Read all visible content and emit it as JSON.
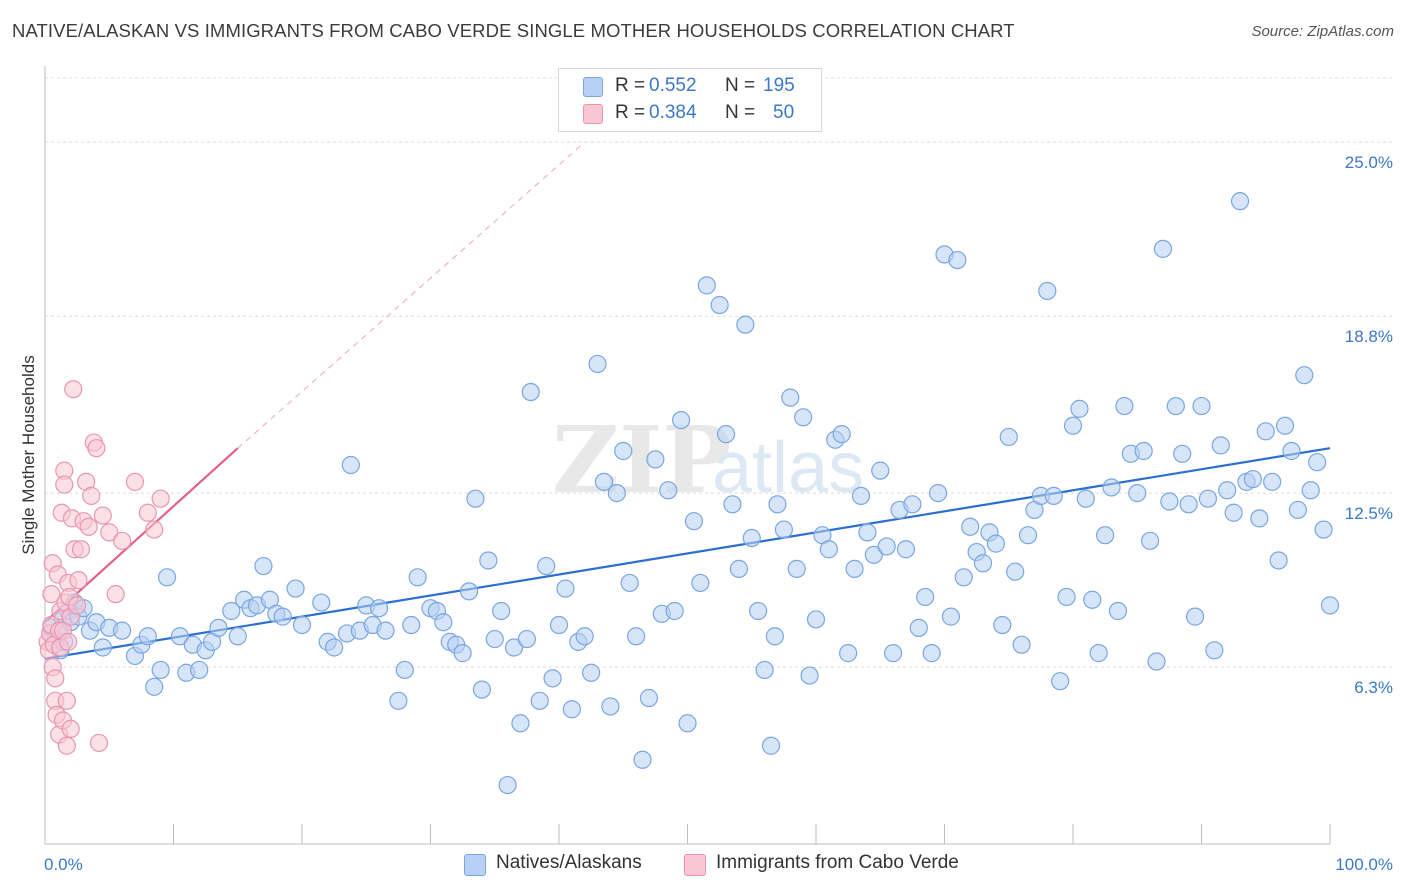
{
  "title": "NATIVE/ALASKAN VS IMMIGRANTS FROM CABO VERDE SINGLE MOTHER HOUSEHOLDS CORRELATION CHART",
  "source": "Source: ZipAtlas.com",
  "watermark": {
    "zip": "ZIP",
    "atlas": "atlas"
  },
  "legend": {
    "r_label": "R =",
    "n_label": "N =",
    "items": [
      {
        "r": "0.552",
        "n": "195",
        "fill": "#b7d0f4",
        "stroke": "#7aa6e0"
      },
      {
        "r": "0.384",
        "n": "50",
        "fill": "#f9c6d6",
        "stroke": "#e896b0"
      }
    ]
  },
  "chart_data": {
    "type": "scatter",
    "title": "NATIVE/ALASKAN VS IMMIGRANTS FROM CABO VERDE SINGLE MOTHER HOUSEHOLDS CORRELATION CHART",
    "xlabel": "",
    "ylabel": "Single Mother Households",
    "xlim": [
      0,
      100
    ],
    "ylim": [
      0,
      27.5
    ],
    "x_tick_labels": [
      "0.0%",
      "100.0%"
    ],
    "y_ticks": [
      6.3,
      12.5,
      18.8,
      25.0
    ],
    "y_tick_labels": [
      "6.3%",
      "12.5%",
      "18.8%",
      "25.0%"
    ],
    "grid": true,
    "legend_position": "top-center",
    "series": [
      {
        "name": "Natives/Alaskans",
        "color": "#7aa6e0",
        "fill": "#b7d0f4",
        "trend": {
          "x": [
            0,
            100
          ],
          "y": [
            6.6,
            14.1
          ],
          "color": "#2a6fd0"
        },
        "points": [
          [
            0.5,
            7.7
          ],
          [
            0.8,
            7.3
          ],
          [
            1.0,
            7.5
          ],
          [
            1.2,
            6.9
          ],
          [
            1.4,
            8.0
          ],
          [
            1.5,
            7.2
          ],
          [
            1.8,
            8.3
          ],
          [
            2.0,
            7.9
          ],
          [
            2.3,
            8.6
          ],
          [
            2.6,
            8.1
          ],
          [
            3.0,
            8.4
          ],
          [
            3.5,
            7.6
          ],
          [
            4.0,
            7.9
          ],
          [
            4.5,
            7.0
          ],
          [
            5.0,
            7.7
          ],
          [
            6.0,
            7.6
          ],
          [
            7.0,
            6.7
          ],
          [
            7.5,
            7.1
          ],
          [
            8.0,
            7.4
          ],
          [
            8.5,
            5.6
          ],
          [
            9.0,
            6.2
          ],
          [
            9.5,
            9.5
          ],
          [
            10.5,
            7.4
          ],
          [
            11.0,
            6.1
          ],
          [
            11.5,
            7.1
          ],
          [
            12.0,
            6.2
          ],
          [
            12.5,
            6.9
          ],
          [
            13.0,
            7.2
          ],
          [
            13.5,
            7.7
          ],
          [
            14.5,
            8.3
          ],
          [
            15.0,
            7.4
          ],
          [
            15.5,
            8.7
          ],
          [
            16.0,
            8.4
          ],
          [
            16.5,
            8.5
          ],
          [
            17.0,
            9.9
          ],
          [
            17.5,
            8.7
          ],
          [
            18.0,
            8.2
          ],
          [
            18.5,
            8.1
          ],
          [
            19.5,
            9.1
          ],
          [
            20.0,
            7.8
          ],
          [
            21.5,
            8.6
          ],
          [
            22.0,
            7.2
          ],
          [
            22.5,
            7.0
          ],
          [
            23.5,
            7.5
          ],
          [
            23.8,
            13.5
          ],
          [
            24.5,
            7.6
          ],
          [
            25.0,
            8.5
          ],
          [
            25.5,
            7.8
          ],
          [
            26.0,
            8.4
          ],
          [
            26.5,
            7.6
          ],
          [
            27.5,
            5.1
          ],
          [
            28.0,
            6.2
          ],
          [
            28.5,
            7.8
          ],
          [
            29.0,
            9.5
          ],
          [
            30.0,
            8.4
          ],
          [
            30.5,
            8.3
          ],
          [
            31.0,
            7.9
          ],
          [
            31.5,
            7.2
          ],
          [
            32.0,
            7.1
          ],
          [
            32.5,
            6.8
          ],
          [
            33.0,
            9.0
          ],
          [
            33.5,
            12.3
          ],
          [
            34.0,
            5.5
          ],
          [
            34.5,
            10.1
          ],
          [
            35.0,
            7.3
          ],
          [
            35.5,
            8.3
          ],
          [
            36.0,
            2.1
          ],
          [
            36.5,
            7.0
          ],
          [
            37.0,
            4.3
          ],
          [
            37.5,
            7.3
          ],
          [
            37.8,
            16.1
          ],
          [
            38.5,
            5.1
          ],
          [
            39.0,
            9.9
          ],
          [
            39.5,
            5.9
          ],
          [
            40.0,
            7.8
          ],
          [
            40.5,
            9.1
          ],
          [
            41.0,
            4.8
          ],
          [
            41.5,
            7.2
          ],
          [
            42.0,
            7.4
          ],
          [
            42.5,
            6.1
          ],
          [
            43.0,
            17.1
          ],
          [
            43.5,
            12.9
          ],
          [
            44.0,
            4.9
          ],
          [
            44.5,
            12.5
          ],
          [
            45.0,
            14.0
          ],
          [
            45.5,
            9.3
          ],
          [
            46.0,
            7.4
          ],
          [
            46.5,
            3.0
          ],
          [
            47.0,
            5.2
          ],
          [
            47.5,
            13.7
          ],
          [
            48.0,
            8.2
          ],
          [
            48.5,
            12.6
          ],
          [
            49.0,
            8.3
          ],
          [
            49.5,
            15.1
          ],
          [
            50.0,
            4.3
          ],
          [
            50.5,
            11.5
          ],
          [
            51.0,
            9.3
          ],
          [
            51.5,
            19.9
          ],
          [
            52.5,
            19.2
          ],
          [
            53.0,
            14.6
          ],
          [
            53.5,
            12.1
          ],
          [
            54.0,
            9.8
          ],
          [
            54.5,
            18.5
          ],
          [
            55.0,
            10.9
          ],
          [
            55.5,
            8.3
          ],
          [
            56.0,
            6.2
          ],
          [
            56.5,
            3.5
          ],
          [
            56.8,
            7.4
          ],
          [
            57.0,
            12.1
          ],
          [
            57.5,
            11.2
          ],
          [
            58.0,
            15.9
          ],
          [
            58.5,
            9.8
          ],
          [
            59.0,
            15.2
          ],
          [
            59.5,
            6.0
          ],
          [
            60.0,
            8.0
          ],
          [
            60.5,
            11.0
          ],
          [
            61.0,
            10.5
          ],
          [
            61.5,
            14.4
          ],
          [
            62.0,
            14.6
          ],
          [
            62.5,
            6.8
          ],
          [
            63.0,
            9.8
          ],
          [
            63.5,
            12.4
          ],
          [
            64.0,
            11.1
          ],
          [
            64.5,
            10.3
          ],
          [
            65.0,
            13.3
          ],
          [
            65.5,
            10.6
          ],
          [
            66.0,
            6.8
          ],
          [
            66.5,
            11.9
          ],
          [
            67.0,
            10.5
          ],
          [
            67.5,
            12.1
          ],
          [
            68.0,
            7.7
          ],
          [
            68.5,
            8.8
          ],
          [
            69.0,
            6.8
          ],
          [
            69.5,
            12.5
          ],
          [
            70.0,
            21.0
          ],
          [
            70.5,
            8.1
          ],
          [
            71.0,
            20.8
          ],
          [
            71.5,
            9.5
          ],
          [
            72.0,
            11.3
          ],
          [
            72.5,
            10.4
          ],
          [
            73.0,
            10.0
          ],
          [
            73.5,
            11.1
          ],
          [
            74.0,
            10.7
          ],
          [
            74.5,
            7.8
          ],
          [
            75.0,
            14.5
          ],
          [
            75.5,
            9.7
          ],
          [
            76.0,
            7.1
          ],
          [
            76.5,
            11.0
          ],
          [
            77.0,
            11.9
          ],
          [
            77.5,
            12.4
          ],
          [
            78.0,
            19.7
          ],
          [
            78.5,
            12.4
          ],
          [
            79.0,
            5.8
          ],
          [
            79.5,
            8.8
          ],
          [
            80.0,
            14.9
          ],
          [
            80.5,
            15.5
          ],
          [
            81.0,
            12.3
          ],
          [
            81.5,
            8.7
          ],
          [
            82.0,
            6.8
          ],
          [
            82.5,
            11.0
          ],
          [
            83.0,
            12.7
          ],
          [
            83.5,
            8.3
          ],
          [
            84.0,
            15.6
          ],
          [
            84.5,
            13.9
          ],
          [
            85.0,
            12.5
          ],
          [
            85.5,
            14.0
          ],
          [
            86.0,
            10.8
          ],
          [
            86.5,
            6.5
          ],
          [
            87.0,
            21.2
          ],
          [
            87.5,
            12.2
          ],
          [
            88.0,
            15.6
          ],
          [
            88.5,
            13.9
          ],
          [
            89.0,
            12.1
          ],
          [
            89.5,
            8.1
          ],
          [
            90.0,
            15.6
          ],
          [
            90.5,
            12.3
          ],
          [
            91.0,
            6.9
          ],
          [
            91.5,
            14.2
          ],
          [
            92.0,
            12.6
          ],
          [
            92.5,
            11.8
          ],
          [
            93.0,
            22.9
          ],
          [
            93.5,
            12.9
          ],
          [
            94.0,
            13.0
          ],
          [
            94.5,
            11.6
          ],
          [
            95.0,
            14.7
          ],
          [
            95.5,
            12.9
          ],
          [
            96.0,
            10.1
          ],
          [
            96.5,
            14.9
          ],
          [
            97.0,
            14.0
          ],
          [
            97.5,
            11.9
          ],
          [
            98.0,
            16.7
          ],
          [
            98.5,
            12.6
          ],
          [
            99.0,
            13.6
          ],
          [
            99.5,
            11.2
          ],
          [
            100.0,
            8.5
          ]
        ]
      },
      {
        "name": "Immigrants from Cabo Verde",
        "color": "#e896b0",
        "fill": "#f9c6d6",
        "trend": {
          "x": [
            0,
            15
          ],
          "y": [
            7.9,
            14.1
          ],
          "color": "#e0608a",
          "dashed_extension_to": [
            42,
            25.0
          ]
        },
        "points": [
          [
            0.2,
            7.2
          ],
          [
            0.3,
            6.9
          ],
          [
            0.4,
            7.5
          ],
          [
            0.5,
            7.8
          ],
          [
            0.5,
            8.9
          ],
          [
            0.6,
            6.3
          ],
          [
            0.6,
            10.0
          ],
          [
            0.7,
            7.1
          ],
          [
            0.8,
            5.9
          ],
          [
            0.8,
            5.1
          ],
          [
            0.9,
            4.6
          ],
          [
            1.0,
            9.6
          ],
          [
            1.1,
            7.6
          ],
          [
            1.1,
            3.9
          ],
          [
            1.2,
            7.0
          ],
          [
            1.2,
            8.3
          ],
          [
            1.3,
            11.8
          ],
          [
            1.4,
            7.6
          ],
          [
            1.4,
            4.4
          ],
          [
            1.5,
            13.3
          ],
          [
            1.5,
            12.8
          ],
          [
            1.6,
            8.6
          ],
          [
            1.7,
            5.1
          ],
          [
            1.7,
            3.5
          ],
          [
            1.8,
            7.2
          ],
          [
            1.8,
            9.3
          ],
          [
            1.9,
            8.8
          ],
          [
            2.0,
            8.1
          ],
          [
            2.0,
            4.1
          ],
          [
            2.1,
            11.6
          ],
          [
            2.2,
            16.2
          ],
          [
            2.3,
            10.5
          ],
          [
            2.5,
            8.5
          ],
          [
            2.6,
            9.4
          ],
          [
            2.8,
            10.5
          ],
          [
            3.0,
            11.5
          ],
          [
            3.2,
            12.9
          ],
          [
            3.4,
            11.3
          ],
          [
            3.6,
            12.4
          ],
          [
            3.8,
            14.3
          ],
          [
            4.0,
            14.1
          ],
          [
            4.2,
            3.6
          ],
          [
            4.5,
            11.7
          ],
          [
            5.0,
            11.1
          ],
          [
            5.5,
            8.9
          ],
          [
            6.0,
            10.8
          ],
          [
            7.0,
            12.9
          ],
          [
            8.0,
            11.8
          ],
          [
            8.5,
            11.2
          ],
          [
            9.0,
            12.3
          ]
        ]
      }
    ]
  },
  "bottom_legend": [
    "Natives/Alaskans",
    "Immigrants from Cabo Verde"
  ]
}
